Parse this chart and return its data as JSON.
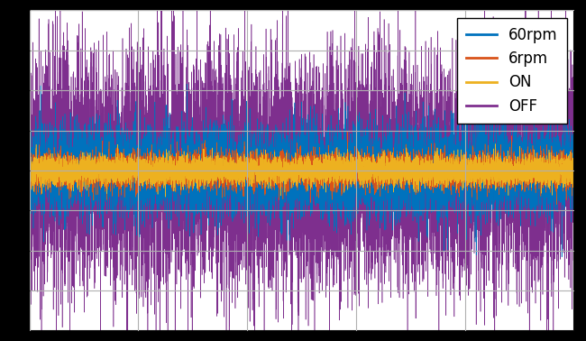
{
  "n_points": 10000,
  "seed": 42,
  "colors": {
    "60rpm": "#0072BD",
    "6rpm": "#D95319",
    "ON": "#EDB120",
    "OFF": "#7E2F8E"
  },
  "amplitudes": {
    "60rpm": 0.55,
    "6rpm": 0.22,
    "ON": 0.18,
    "OFF": 1.4
  },
  "legend_labels": [
    "60rpm",
    "6rpm",
    "ON",
    "OFF"
  ],
  "background_color": "#ffffff",
  "grid_color": "#b0b0b0",
  "ylim": [
    -4.0,
    4.0
  ],
  "legend_fontsize": 12
}
